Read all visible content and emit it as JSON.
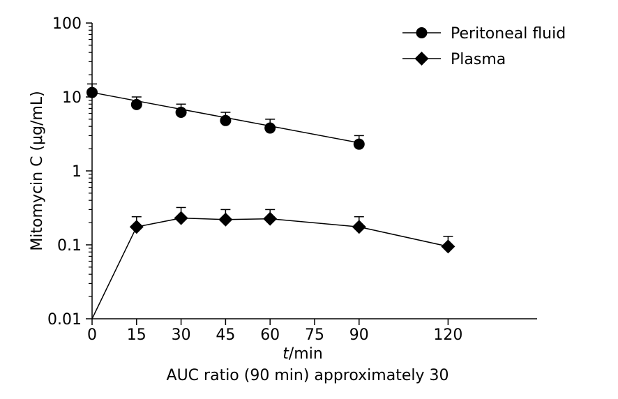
{
  "chart_data": {
    "type": "line",
    "xlabel_italic": "t",
    "xlabel_rest": "/min",
    "ylabel": "Mitomycin C (μg/mL)",
    "footnote": "AUC ratio (90 min) approximately 30",
    "y_scale": "log",
    "xlim": [
      0,
      150
    ],
    "ylim": [
      0.01,
      100
    ],
    "x_ticks": [
      0,
      15,
      30,
      45,
      60,
      75,
      90,
      120
    ],
    "y_ticks": [
      0.01,
      0.1,
      1,
      10,
      100
    ],
    "y_tick_labels": [
      "0.01",
      "0.1",
      "1",
      "10",
      "100"
    ],
    "grid": false,
    "legend_position": "top-right",
    "series": [
      {
        "name": "Peritoneal fluid",
        "marker": "circle",
        "x": [
          0,
          15,
          30,
          45,
          60,
          90
        ],
        "y": [
          11.5,
          7.9,
          6.2,
          4.8,
          3.8,
          2.3
        ],
        "error_upper": [
          15.0,
          10.0,
          8.0,
          6.2,
          5.0,
          3.0
        ],
        "fit_line": {
          "from": [
            0,
            11.5
          ],
          "to": [
            90,
            2.4
          ]
        }
      },
      {
        "name": "Plasma",
        "marker": "diamond",
        "x": [
          0,
          15,
          30,
          45,
          60,
          90,
          120
        ],
        "y": [
          0.01,
          0.175,
          0.23,
          0.22,
          0.225,
          0.175,
          0.095
        ],
        "error_upper": [
          null,
          0.24,
          0.32,
          0.3,
          0.3,
          0.24,
          0.13
        ]
      }
    ]
  },
  "colors": {
    "ink": "#000000",
    "background": "#ffffff"
  }
}
